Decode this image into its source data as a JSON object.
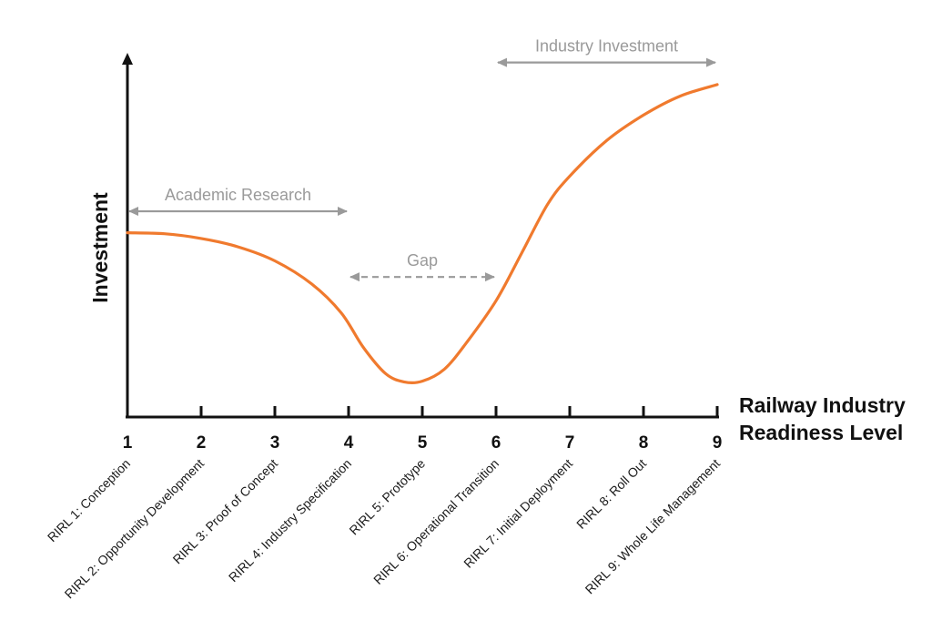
{
  "chart_data": {
    "type": "line",
    "title": "",
    "xlabel": "Railway Industry Readiness Level",
    "xlabel_lines": [
      "Railway Industry",
      "Readiness Level"
    ],
    "ylabel": "Investment",
    "xlim": [
      1,
      9
    ],
    "ylim": [
      0,
      100
    ],
    "x_ticks": [
      "1",
      "2",
      "3",
      "4",
      "5",
      "6",
      "7",
      "8",
      "9"
    ],
    "categories": [
      "RIRL 1: Conception",
      "RIRL 2: Opportunity Development",
      "RIRL 3: Proof of Concept",
      "RIRL 4: Industry Specification",
      "RIRL 5: Prototype",
      "RIRL 6: Operational Transition",
      "RIRL 7: Initial Deployment",
      "RIRL 8: Roll Out",
      "RIRL 9: Whole Life Management"
    ],
    "series": [
      {
        "color": "#f07a2e",
        "points": [
          [
            1.0,
            55.0
          ],
          [
            1.5,
            54.7
          ],
          [
            2.0,
            53.3
          ],
          [
            2.5,
            50.8
          ],
          [
            3.0,
            46.6
          ],
          [
            3.5,
            39.7
          ],
          [
            3.9,
            31.1
          ],
          [
            4.2,
            20.8
          ],
          [
            4.5,
            13.0
          ],
          [
            4.75,
            10.5
          ],
          [
            5.0,
            10.7
          ],
          [
            5.3,
            14.3
          ],
          [
            5.6,
            22.2
          ],
          [
            6.0,
            34.7
          ],
          [
            6.35,
            49.0
          ],
          [
            6.7,
            63.5
          ],
          [
            7.0,
            71.9
          ],
          [
            7.5,
            82.5
          ],
          [
            8.0,
            90.1
          ],
          [
            8.5,
            95.8
          ],
          [
            9.0,
            99.2
          ]
        ]
      }
    ],
    "annotations": [
      {
        "label": "Academic Research",
        "from": 1,
        "to": 4,
        "y": 61.4,
        "style": "solid"
      },
      {
        "label": "Gap",
        "from": 4,
        "to": 6,
        "y": 41.8,
        "style": "dashed"
      },
      {
        "label": "Industry Investment",
        "from": 6,
        "to": 9,
        "y": 105.8,
        "style": "solid"
      }
    ],
    "grid": false,
    "legend": "none",
    "colors": {
      "line": "#f07a2e",
      "axis": "#111111",
      "annotation": "#9a9a9a"
    }
  }
}
